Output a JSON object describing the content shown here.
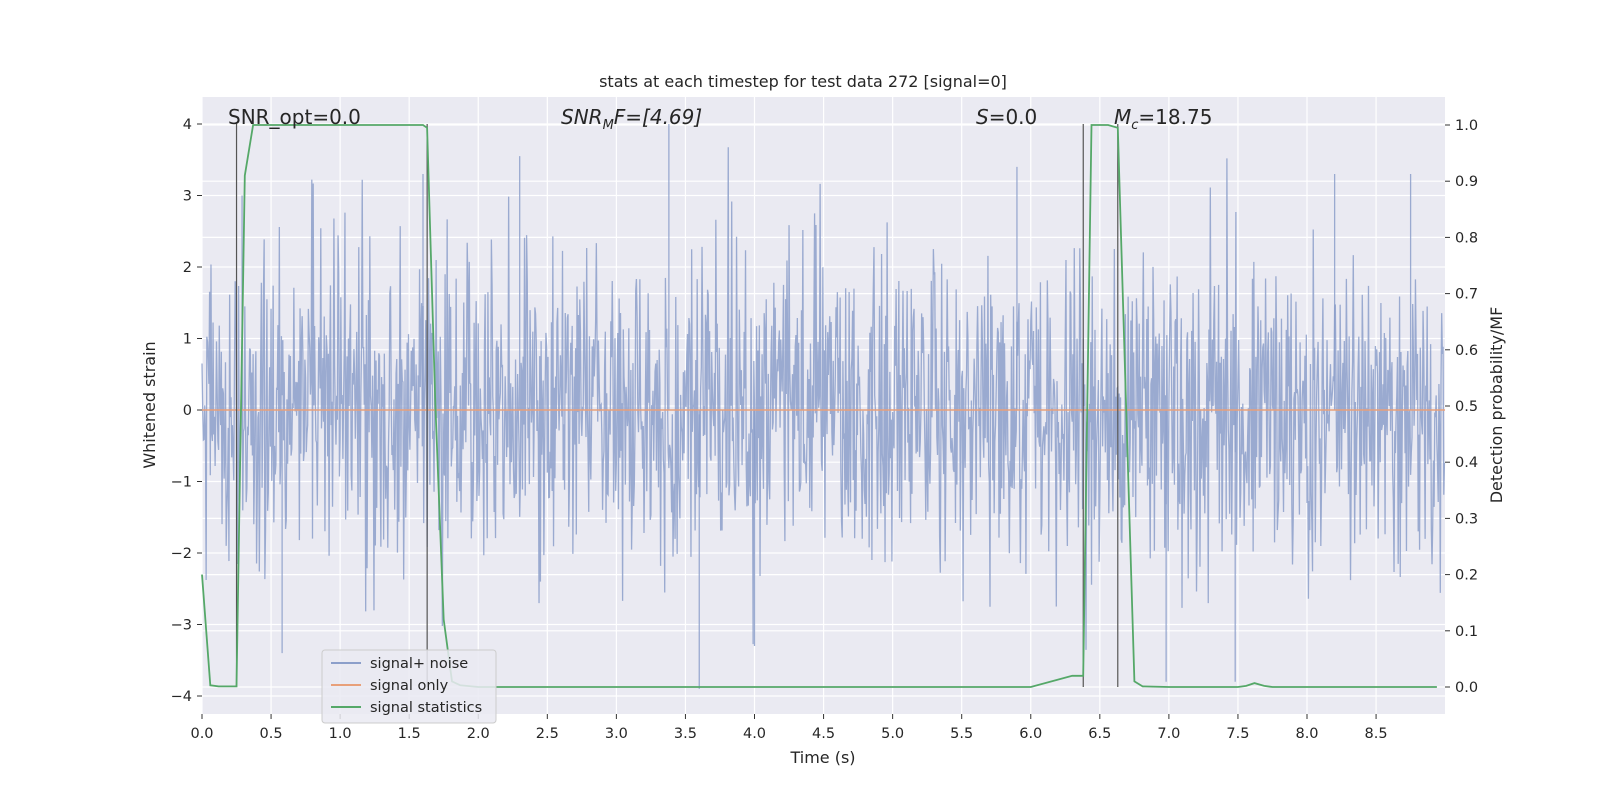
{
  "chart_data": {
    "type": "line",
    "title": "stats at each timestep for test data 272 [signal=0]",
    "xlabel": "Time (s)",
    "ylabel": "Whitened strain",
    "y2label": "Detection probability/MF",
    "xlim": [
      0.0,
      9.0
    ],
    "ylim": [
      -4.3,
      4.4
    ],
    "y2lim": [
      -0.05,
      1.05
    ],
    "x_ticks": [
      "0.0",
      "0.5",
      "1.0",
      "1.5",
      "2.0",
      "2.5",
      "3.0",
      "3.5",
      "4.0",
      "4.5",
      "5.0",
      "5.5",
      "6.0",
      "6.5",
      "7.0",
      "7.5",
      "8.0",
      "8.5"
    ],
    "y_ticks": [
      "4",
      "3",
      "2",
      "1",
      "0",
      "−1",
      "−2",
      "−3",
      "−4"
    ],
    "y2_ticks": [
      "1.0",
      "0.9",
      "0.8",
      "0.7",
      "0.6",
      "0.5",
      "0.4",
      "0.3",
      "0.2",
      "0.1",
      "0.0"
    ],
    "grid": true,
    "legend_position": "lower-left",
    "legend": [
      {
        "label": "signal+ noise",
        "color": "#8c9fca"
      },
      {
        "label": "signal only",
        "color": "#e8a07a"
      },
      {
        "label": "signal statistics",
        "color": "#55a868"
      }
    ],
    "annotations": {
      "snr_opt": "SNR_opt=0.0",
      "snr_mf_prefix": "SNR",
      "snr_mf_sub": "M",
      "snr_mf_rest": "F=[4.69]",
      "s_sym": "S",
      "s_val": "=0.0",
      "mc_sym": "M",
      "mc_sub": "c",
      "mc_val": "=18.75"
    },
    "signal_noise": {
      "description_free": true,
      "duration": 9.0,
      "samples": 1800,
      "envelope_pos_max": 4.0,
      "envelope_neg_min": -3.9
    },
    "signal_only": {
      "values": [
        0.0
      ]
    },
    "vertical_markers_x": [
      0.25,
      1.63,
      6.38,
      6.63
    ],
    "signal_statistics": {
      "x": [
        0.0,
        0.06,
        0.12,
        0.18,
        0.25,
        0.31,
        0.37,
        0.42,
        0.5,
        0.6,
        0.8,
        1.0,
        1.2,
        1.4,
        1.6,
        1.63,
        1.69,
        1.75,
        1.81,
        1.87,
        2.0,
        2.5,
        3.0,
        3.5,
        4.0,
        4.5,
        5.0,
        5.5,
        6.0,
        6.3,
        6.38,
        6.44,
        6.5,
        6.56,
        6.63,
        6.69,
        6.75,
        6.81,
        7.0,
        7.5,
        7.56,
        7.62,
        7.69,
        7.75,
        8.0,
        8.5,
        8.94
      ],
      "y": [
        0.2,
        0.003,
        0.001,
        0.001,
        0.001,
        0.91,
        1.0,
        1.0,
        1.0,
        1.0,
        1.0,
        1.0,
        1.0,
        1.0,
        1.0,
        0.995,
        0.5,
        0.12,
        0.01,
        0.003,
        0.0,
        0.0,
        0.0,
        0.0,
        0.0,
        0.0,
        0.0,
        0.0,
        0.0,
        0.02,
        0.02,
        1.0,
        1.0,
        1.0,
        0.995,
        0.5,
        0.01,
        0.001,
        0.0,
        0.0,
        0.002,
        0.007,
        0.002,
        0.0,
        0.0,
        0.0,
        0.0
      ]
    }
  }
}
